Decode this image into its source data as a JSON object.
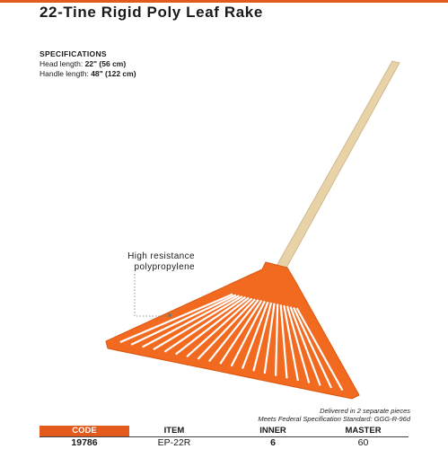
{
  "product": {
    "title": "22-Tine Rigid Poly Leaf Rake"
  },
  "specifications": {
    "heading": "SPECIFICATIONS",
    "head_label": "Head length: ",
    "head_value": "22\" (56 cm)",
    "handle_label": "Handle length: ",
    "handle_value": "48\" (122 cm)"
  },
  "callout": {
    "line1": "High resistance",
    "line2": "polypropylene"
  },
  "notes": {
    "line1": "Delivered in 2 separate pieces",
    "line2": "Meets Federal Specification Standard: GGG-R-96d"
  },
  "table": {
    "headers": {
      "code": "CODE",
      "item": "ITEM",
      "inner": "INNER",
      "master": "MASTER"
    },
    "row": {
      "code": "19786",
      "item": "EP-22R",
      "inner": "6",
      "master": "60"
    }
  },
  "colors": {
    "accent": "#e25a1c",
    "rake_head": "#f26a1f",
    "handle": "#e8d3a8"
  }
}
